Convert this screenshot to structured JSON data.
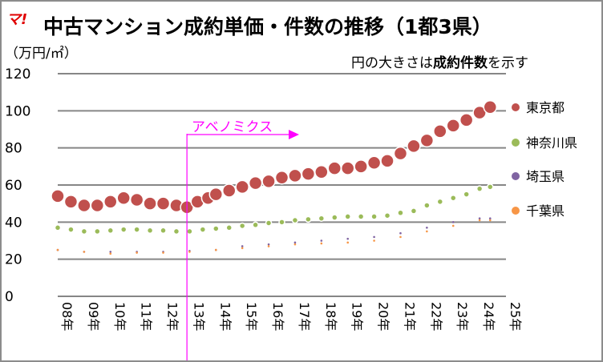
{
  "logo": "マ!",
  "chart_data": {
    "type": "scatter",
    "title": "中古マンション成約単価・件数の推移（1都3県）",
    "ylabel": "（万円/㎡）",
    "note": {
      "part1": "円の大きさは",
      "part2": "成約件数",
      "part3": "を示す"
    },
    "ylim": [
      0,
      120
    ],
    "yticks": [
      0,
      20,
      40,
      60,
      80,
      100,
      120
    ],
    "xlim": [
      2008,
      2025
    ],
    "xticks": [
      "08年",
      "09年",
      "10年",
      "11年",
      "12年",
      "13年",
      "14年",
      "15年",
      "16年",
      "17年",
      "18年",
      "19年",
      "20年",
      "21年",
      "22年",
      "23年",
      "24年",
      "25年"
    ],
    "grid": true,
    "legend_position": "right",
    "annotation": {
      "text": "アベノミクス",
      "x": 2012.9,
      "color": "#ff00ff"
    },
    "series": [
      {
        "name": "東京都",
        "color": "#c0504d",
        "bubble_scale": "large",
        "x": [
          2008,
          2008.5,
          2009,
          2009.5,
          2010,
          2010.5,
          2011,
          2011.5,
          2012,
          2012.5,
          2012.9,
          2013.3,
          2013.7,
          2014,
          2014.5,
          2015,
          2015.5,
          2016,
          2016.5,
          2017,
          2017.5,
          2018,
          2018.5,
          2019,
          2019.5,
          2020,
          2020.5,
          2021,
          2021.5,
          2022,
          2022.5,
          2023,
          2023.5,
          2024,
          2024.4
        ],
        "y": [
          54,
          51,
          49,
          49,
          51,
          53,
          52,
          50,
          50,
          49,
          48,
          51,
          53,
          55,
          57,
          59,
          61,
          62,
          64,
          65,
          66,
          67,
          69,
          69,
          70,
          72,
          73,
          77,
          81,
          84,
          89,
          92,
          95,
          99,
          102
        ]
      },
      {
        "name": "神奈川県",
        "color": "#9bbb59",
        "bubble_scale": "medium",
        "x": [
          2008,
          2008.5,
          2009,
          2009.5,
          2010,
          2010.5,
          2011,
          2011.5,
          2012,
          2012.5,
          2013,
          2013.5,
          2014,
          2014.5,
          2015,
          2015.5,
          2016,
          2016.5,
          2017,
          2017.5,
          2018,
          2018.5,
          2019,
          2019.5,
          2020,
          2020.5,
          2021,
          2021.5,
          2022,
          2022.5,
          2023,
          2023.5,
          2024,
          2024.4
        ],
        "y": [
          37,
          36,
          35,
          35,
          35.5,
          36,
          36,
          35.5,
          35.5,
          35,
          35,
          36,
          36.5,
          37,
          38,
          38.5,
          39.5,
          40,
          41,
          41.5,
          42,
          42.5,
          43,
          43,
          43,
          43.5,
          45,
          46,
          49,
          51,
          53,
          55,
          58,
          59
        ]
      },
      {
        "name": "埼玉県",
        "color": "#8064a2",
        "bubble_scale": "small",
        "x": [
          2008,
          2009,
          2010,
          2011,
          2012,
          2013,
          2014,
          2015,
          2016,
          2017,
          2018,
          2019,
          2020,
          2021,
          2022,
          2023,
          2024,
          2024.4
        ],
        "y": [
          25,
          24,
          24,
          24,
          24,
          24.5,
          25,
          27,
          28,
          29,
          30,
          31,
          32,
          34,
          37,
          40,
          42,
          42
        ]
      },
      {
        "name": "千葉県",
        "color": "#f79646",
        "bubble_scale": "small",
        "x": [
          2008,
          2009,
          2010,
          2011,
          2012,
          2013,
          2014,
          2015,
          2016,
          2017,
          2018,
          2019,
          2020,
          2021,
          2022,
          2023,
          2024,
          2024.4
        ],
        "y": [
          25,
          24,
          23,
          23.5,
          23.5,
          24,
          25,
          26,
          27,
          28,
          28.5,
          29,
          30,
          32,
          35,
          38,
          41,
          41
        ]
      }
    ]
  }
}
